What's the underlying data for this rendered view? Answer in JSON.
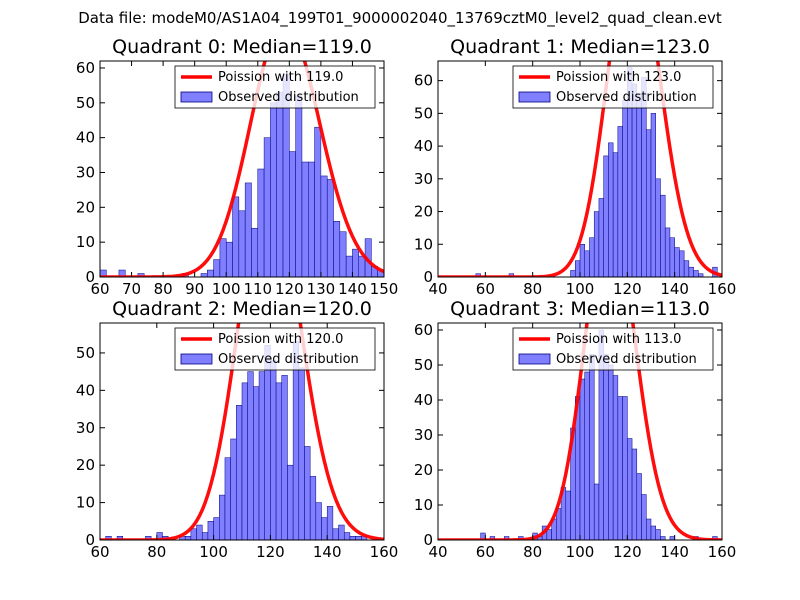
{
  "suptitle": "Data file: modeM0/AS1A04_199T01_9000002040_13769cztM0_level2_quad_clean.evt",
  "colors": {
    "bar_fill": "#7f7fff",
    "bar_edge": "#00007f",
    "curve": "#ff0000",
    "frame": "#000000"
  },
  "chart_data": [
    {
      "type": "bar",
      "title": "Quadrant 0: Median=119.0",
      "median": 119.0,
      "xlim": [
        60,
        150
      ],
      "ylim": [
        0,
        62
      ],
      "xticks": [
        60,
        70,
        80,
        90,
        100,
        110,
        120,
        130,
        140,
        150
      ],
      "yticks": [
        0,
        10,
        20,
        30,
        40,
        50,
        60
      ],
      "legend": {
        "position": "top-right",
        "entries": [
          "Poission with 119.0",
          "Observed distribution"
        ]
      },
      "bins": [
        [
          60,
          2
        ],
        [
          66,
          2
        ],
        [
          72,
          1
        ],
        [
          86,
          1
        ],
        [
          92,
          1
        ],
        [
          94,
          2
        ],
        [
          96,
          5
        ],
        [
          98,
          11
        ],
        [
          100,
          10
        ],
        [
          102,
          23
        ],
        [
          104,
          19
        ],
        [
          106,
          27
        ],
        [
          108,
          14
        ],
        [
          110,
          31
        ],
        [
          112,
          40
        ],
        [
          114,
          50
        ],
        [
          116,
          53
        ],
        [
          118,
          58
        ],
        [
          120,
          36
        ],
        [
          122,
          52
        ],
        [
          124,
          33
        ],
        [
          126,
          33
        ],
        [
          128,
          43
        ],
        [
          130,
          29
        ],
        [
          132,
          28
        ],
        [
          134,
          16
        ],
        [
          136,
          13
        ],
        [
          138,
          6
        ],
        [
          140,
          8
        ],
        [
          142,
          6
        ],
        [
          144,
          11
        ],
        [
          146,
          3
        ],
        [
          148,
          2
        ]
      ],
      "bin_width": 2,
      "curve": {
        "label": "Poission with 119.0",
        "lambda": 119.0,
        "scale": 2.0
      }
    },
    {
      "type": "bar",
      "title": "Quadrant 1: Median=123.0",
      "median": 123.0,
      "xlim": [
        40,
        160
      ],
      "ylim": [
        0,
        66
      ],
      "xticks": [
        40,
        60,
        80,
        100,
        120,
        140,
        160
      ],
      "yticks": [
        0,
        10,
        20,
        30,
        40,
        50,
        60
      ],
      "legend": {
        "position": "top-right",
        "entries": [
          "Poission with 123.0",
          "Observed distribution"
        ]
      },
      "bins": [
        [
          56,
          1
        ],
        [
          70,
          1
        ],
        [
          96,
          2
        ],
        [
          98,
          5
        ],
        [
          100,
          10
        ],
        [
          102,
          8
        ],
        [
          104,
          12
        ],
        [
          106,
          20
        ],
        [
          108,
          24
        ],
        [
          110,
          37
        ],
        [
          112,
          41
        ],
        [
          114,
          38
        ],
        [
          116,
          46
        ],
        [
          118,
          54
        ],
        [
          120,
          64
        ],
        [
          122,
          59
        ],
        [
          124,
          56
        ],
        [
          126,
          61
        ],
        [
          128,
          45
        ],
        [
          130,
          50
        ],
        [
          132,
          30
        ],
        [
          134,
          25
        ],
        [
          136,
          15
        ],
        [
          138,
          12
        ],
        [
          140,
          9
        ],
        [
          142,
          8
        ],
        [
          144,
          5
        ],
        [
          146,
          3
        ],
        [
          148,
          2
        ],
        [
          150,
          1
        ],
        [
          156,
          3
        ]
      ],
      "bin_width": 2,
      "curve": {
        "label": "Poission with 123.0",
        "lambda": 123.0,
        "scale": 2.8
      }
    },
    {
      "type": "bar",
      "title": "Quadrant 2: Median=120.0",
      "median": 120.0,
      "xlim": [
        60,
        160
      ],
      "ylim": [
        0,
        58
      ],
      "xticks": [
        60,
        80,
        100,
        120,
        140,
        160
      ],
      "yticks": [
        0,
        10,
        20,
        30,
        40,
        50
      ],
      "legend": {
        "position": "top-right",
        "entries": [
          "Poission with 120.0",
          "Observed distribution"
        ]
      },
      "bins": [
        [
          62,
          1
        ],
        [
          66,
          1
        ],
        [
          76,
          1
        ],
        [
          80,
          2
        ],
        [
          82,
          1
        ],
        [
          88,
          1
        ],
        [
          90,
          1
        ],
        [
          92,
          3
        ],
        [
          94,
          4
        ],
        [
          96,
          2
        ],
        [
          98,
          5
        ],
        [
          100,
          6
        ],
        [
          102,
          12
        ],
        [
          104,
          22
        ],
        [
          106,
          27
        ],
        [
          108,
          36
        ],
        [
          110,
          42
        ],
        [
          112,
          45
        ],
        [
          114,
          41
        ],
        [
          116,
          45
        ],
        [
          118,
          52
        ],
        [
          120,
          48
        ],
        [
          122,
          42
        ],
        [
          124,
          44
        ],
        [
          126,
          20
        ],
        [
          128,
          53
        ],
        [
          130,
          46
        ],
        [
          132,
          25
        ],
        [
          134,
          17
        ],
        [
          136,
          10
        ],
        [
          138,
          6
        ],
        [
          140,
          9
        ],
        [
          142,
          3
        ],
        [
          144,
          4
        ],
        [
          146,
          2
        ],
        [
          148,
          1
        ],
        [
          150,
          1
        ],
        [
          152,
          1
        ]
      ],
      "bin_width": 2,
      "curve": {
        "label": "Poission with 120.0",
        "lambda": 120.0,
        "scale": 2.6
      }
    },
    {
      "type": "bar",
      "title": "Quadrant 3: Median=113.0",
      "median": 113.0,
      "xlim": [
        40,
        160
      ],
      "ylim": [
        0,
        62
      ],
      "xticks": [
        40,
        60,
        80,
        100,
        120,
        140,
        160
      ],
      "yticks": [
        0,
        10,
        20,
        30,
        40,
        50,
        60
      ],
      "legend": {
        "position": "top-right",
        "entries": [
          "Poission with 113.0",
          "Observed distribution"
        ]
      },
      "bins": [
        [
          58,
          2
        ],
        [
          62,
          1
        ],
        [
          68,
          1
        ],
        [
          74,
          1
        ],
        [
          80,
          2
        ],
        [
          82,
          1
        ],
        [
          84,
          4
        ],
        [
          86,
          3
        ],
        [
          88,
          6
        ],
        [
          90,
          9
        ],
        [
          92,
          15
        ],
        [
          94,
          14
        ],
        [
          96,
          32
        ],
        [
          98,
          41
        ],
        [
          100,
          46
        ],
        [
          102,
          48
        ],
        [
          104,
          53
        ],
        [
          106,
          16
        ],
        [
          108,
          60
        ],
        [
          110,
          53
        ],
        [
          112,
          50
        ],
        [
          114,
          47
        ],
        [
          116,
          41
        ],
        [
          118,
          41
        ],
        [
          120,
          29
        ],
        [
          122,
          26
        ],
        [
          124,
          19
        ],
        [
          126,
          13
        ],
        [
          128,
          6
        ],
        [
          130,
          4
        ],
        [
          132,
          3
        ],
        [
          134,
          1
        ],
        [
          138,
          1
        ],
        [
          148,
          1
        ],
        [
          156,
          1
        ]
      ],
      "bin_width": 2,
      "curve": {
        "label": "Poission with 113.0",
        "lambda": 113.0,
        "scale": 2.5
      }
    }
  ]
}
